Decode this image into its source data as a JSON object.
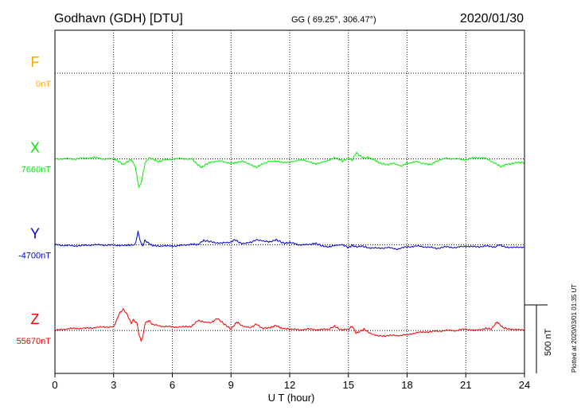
{
  "header": {
    "station": "Godhavn (GDH)  [DTU]",
    "coords": "GG ( 69.25°, 306.47°)",
    "date": "2020/01/30"
  },
  "plotted_note": "Plotted at 2020/03/01 01:35 UT",
  "scale_bar": {
    "label": "500 nT",
    "value_nT": 500
  },
  "chart_data": {
    "type": "line",
    "title": "Godhavn (GDH)  [DTU]",
    "xlabel": "U T (hour)",
    "ylabel": "",
    "xlim": [
      0,
      24
    ],
    "x_ticks": [
      "0",
      "3",
      "6",
      "9",
      "12",
      "15",
      "18",
      "21",
      "24"
    ],
    "grid": true,
    "y_units": "nT",
    "y_view_range": [
      -1200,
      1200
    ],
    "series": [
      {
        "name": "F",
        "color": "#ffa500",
        "baseline_label": "0nT",
        "baseline_offset": 900,
        "points": []
      },
      {
        "name": "X",
        "color": "#00ee00",
        "baseline_label": "7660nT",
        "baseline_offset": 300,
        "points": [
          [
            0,
            0
          ],
          [
            0.5,
            2
          ],
          [
            1,
            0
          ],
          [
            1.5,
            5
          ],
          [
            2,
            10
          ],
          [
            2.5,
            0
          ],
          [
            3,
            0
          ],
          [
            3.3,
            -20
          ],
          [
            3.5,
            -40
          ],
          [
            3.7,
            -20
          ],
          [
            3.9,
            -5
          ],
          [
            4.1,
            -50
          ],
          [
            4.2,
            -130
          ],
          [
            4.3,
            -200
          ],
          [
            4.4,
            -170
          ],
          [
            4.5,
            -110
          ],
          [
            4.6,
            -30
          ],
          [
            4.8,
            5
          ],
          [
            5,
            0
          ],
          [
            5.3,
            -20
          ],
          [
            5.5,
            -10
          ],
          [
            6,
            0
          ],
          [
            6.5,
            2
          ],
          [
            7,
            0
          ],
          [
            7.3,
            -40
          ],
          [
            7.5,
            -60
          ],
          [
            7.7,
            -40
          ],
          [
            8,
            -20
          ],
          [
            8.5,
            -15
          ],
          [
            9,
            -30
          ],
          [
            9.3,
            -25
          ],
          [
            9.6,
            -15
          ],
          [
            10,
            -40
          ],
          [
            10.3,
            -60
          ],
          [
            10.6,
            -35
          ],
          [
            11,
            -15
          ],
          [
            11.5,
            -20
          ],
          [
            12,
            -25
          ],
          [
            12.5,
            -5
          ],
          [
            13,
            -20
          ],
          [
            13.3,
            -35
          ],
          [
            13.6,
            -25
          ],
          [
            14,
            -10
          ],
          [
            14.3,
            10
          ],
          [
            14.7,
            -15
          ],
          [
            15,
            5
          ],
          [
            15.2,
            -10
          ],
          [
            15.4,
            45
          ],
          [
            15.6,
            20
          ],
          [
            15.8,
            5
          ],
          [
            16,
            10
          ],
          [
            16.3,
            -5
          ],
          [
            16.6,
            -30
          ],
          [
            17,
            -40
          ],
          [
            17.3,
            -30
          ],
          [
            17.7,
            -50
          ],
          [
            18,
            -30
          ],
          [
            18.5,
            -20
          ],
          [
            19,
            -35
          ],
          [
            19.2,
            -40
          ],
          [
            19.5,
            -15
          ],
          [
            20,
            5
          ],
          [
            20.5,
            0
          ],
          [
            21,
            -5
          ],
          [
            21.5,
            10
          ],
          [
            22,
            5
          ],
          [
            22.5,
            -30
          ],
          [
            22.8,
            -55
          ],
          [
            23,
            -40
          ],
          [
            23.3,
            -35
          ],
          [
            23.6,
            -25
          ],
          [
            24,
            -25
          ]
        ]
      },
      {
        "name": "Y",
        "color": "#0000dd",
        "baseline_label": "-4700nT",
        "baseline_offset": -300,
        "points": [
          [
            0,
            0
          ],
          [
            0.5,
            -5
          ],
          [
            1,
            -8
          ],
          [
            1.5,
            -5
          ],
          [
            2,
            0
          ],
          [
            2.5,
            -2
          ],
          [
            3,
            -3
          ],
          [
            3.5,
            -5
          ],
          [
            3.8,
            -3
          ],
          [
            4.1,
            0
          ],
          [
            4.25,
            90
          ],
          [
            4.4,
            10
          ],
          [
            4.5,
            -5
          ],
          [
            4.6,
            30
          ],
          [
            4.8,
            10
          ],
          [
            5,
            -8
          ],
          [
            5.5,
            -8
          ],
          [
            6,
            -10
          ],
          [
            6.5,
            -5
          ],
          [
            7,
            5
          ],
          [
            7.3,
            0
          ],
          [
            7.6,
            30
          ],
          [
            8,
            20
          ],
          [
            8.5,
            10
          ],
          [
            9,
            20
          ],
          [
            9.2,
            35
          ],
          [
            9.5,
            10
          ],
          [
            10,
            15
          ],
          [
            10.3,
            35
          ],
          [
            10.7,
            25
          ],
          [
            11,
            20
          ],
          [
            11.3,
            35
          ],
          [
            11.7,
            10
          ],
          [
            12,
            15
          ],
          [
            12.5,
            0
          ],
          [
            13,
            0
          ],
          [
            13.3,
            10
          ],
          [
            13.7,
            -10
          ],
          [
            14,
            -15
          ],
          [
            14.3,
            -5
          ],
          [
            14.7,
            0
          ],
          [
            15,
            -20
          ],
          [
            15.2,
            -5
          ],
          [
            15.4,
            -15
          ],
          [
            15.7,
            -10
          ],
          [
            16,
            -20
          ],
          [
            16.5,
            -25
          ],
          [
            17,
            -20
          ],
          [
            17.5,
            -30
          ],
          [
            18,
            -15
          ],
          [
            18.5,
            -10
          ],
          [
            19,
            -15
          ],
          [
            19.5,
            -25
          ],
          [
            20,
            -15
          ],
          [
            20.5,
            -20
          ],
          [
            21,
            -10
          ],
          [
            21.5,
            -15
          ],
          [
            22,
            -10
          ],
          [
            22.5,
            -15
          ],
          [
            22.7,
            0
          ],
          [
            23,
            -15
          ],
          [
            23.5,
            -20
          ],
          [
            24,
            -15
          ]
        ]
      },
      {
        "name": "Z",
        "color": "#ee0000",
        "baseline_label": "55670nT",
        "baseline_offset": -900,
        "points": [
          [
            0,
            0
          ],
          [
            0.5,
            10
          ],
          [
            1,
            15
          ],
          [
            1.5,
            15
          ],
          [
            2,
            20
          ],
          [
            2.5,
            25
          ],
          [
            3,
            25
          ],
          [
            3.1,
            55
          ],
          [
            3.3,
            120
          ],
          [
            3.5,
            150
          ],
          [
            3.7,
            110
          ],
          [
            3.9,
            50
          ],
          [
            4,
            75
          ],
          [
            4.2,
            50
          ],
          [
            4.3,
            -30
          ],
          [
            4.4,
            -70
          ],
          [
            4.5,
            -45
          ],
          [
            4.6,
            50
          ],
          [
            4.8,
            70
          ],
          [
            5,
            40
          ],
          [
            5.5,
            30
          ],
          [
            6,
            25
          ],
          [
            6.5,
            25
          ],
          [
            7,
            30
          ],
          [
            7.3,
            70
          ],
          [
            7.6,
            60
          ],
          [
            8,
            55
          ],
          [
            8.3,
            85
          ],
          [
            8.7,
            40
          ],
          [
            9,
            10
          ],
          [
            9.3,
            60
          ],
          [
            9.6,
            30
          ],
          [
            10,
            20
          ],
          [
            10.3,
            45
          ],
          [
            10.6,
            15
          ],
          [
            11,
            20
          ],
          [
            11.3,
            35
          ],
          [
            11.6,
            15
          ],
          [
            12,
            10
          ],
          [
            12.5,
            5
          ],
          [
            13,
            10
          ],
          [
            13.5,
            5
          ],
          [
            14,
            10
          ],
          [
            14.3,
            30
          ],
          [
            14.6,
            5
          ],
          [
            15,
            10
          ],
          [
            15.2,
            30
          ],
          [
            15.4,
            -20
          ],
          [
            15.6,
            -5
          ],
          [
            15.8,
            10
          ],
          [
            16,
            -10
          ],
          [
            16.5,
            -40
          ],
          [
            17,
            -35
          ],
          [
            17.5,
            -35
          ],
          [
            18,
            -30
          ],
          [
            18.5,
            -15
          ],
          [
            19,
            -10
          ],
          [
            19.5,
            -5
          ],
          [
            20,
            0
          ],
          [
            20.5,
            0
          ],
          [
            21,
            10
          ],
          [
            21.5,
            0
          ],
          [
            22,
            15
          ],
          [
            22.3,
            10
          ],
          [
            22.6,
            60
          ],
          [
            22.9,
            20
          ],
          [
            23.2,
            10
          ],
          [
            23.5,
            5
          ],
          [
            24,
            5
          ]
        ]
      }
    ]
  }
}
